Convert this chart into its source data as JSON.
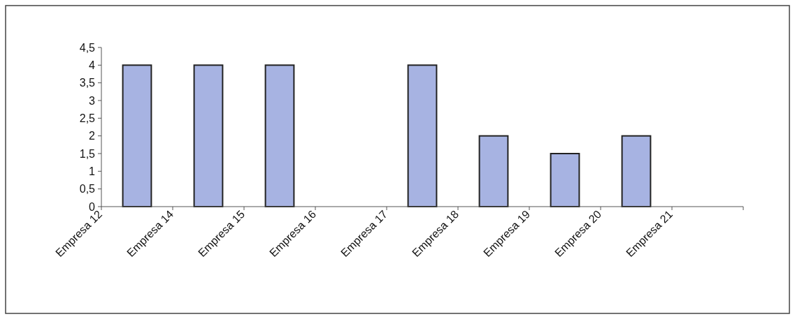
{
  "chart_data": {
    "type": "bar",
    "categories": [
      "Empresa 12",
      "Empresa 14",
      "Empresa 15",
      "Empresa 16",
      "Empresa 17",
      "Empresa 18",
      "Empresa 19",
      "Empresa 20",
      "Empresa 21"
    ],
    "values": [
      4,
      4,
      4,
      null,
      4,
      2,
      1.5,
      2,
      null
    ],
    "color": "#a7b3e2",
    "ylim": [
      0,
      4.5
    ],
    "yticks": [
      0,
      {
        "value": 0.5,
        "label": "0,5"
      },
      1,
      {
        "value": 1.5,
        "label": "1,5"
      },
      2,
      {
        "value": 2.5,
        "label": "2,5"
      },
      3,
      {
        "value": 3.5,
        "label": "3,5"
      },
      4,
      {
        "value": 4.5,
        "label": "4,5"
      }
    ],
    "grid": false
  }
}
